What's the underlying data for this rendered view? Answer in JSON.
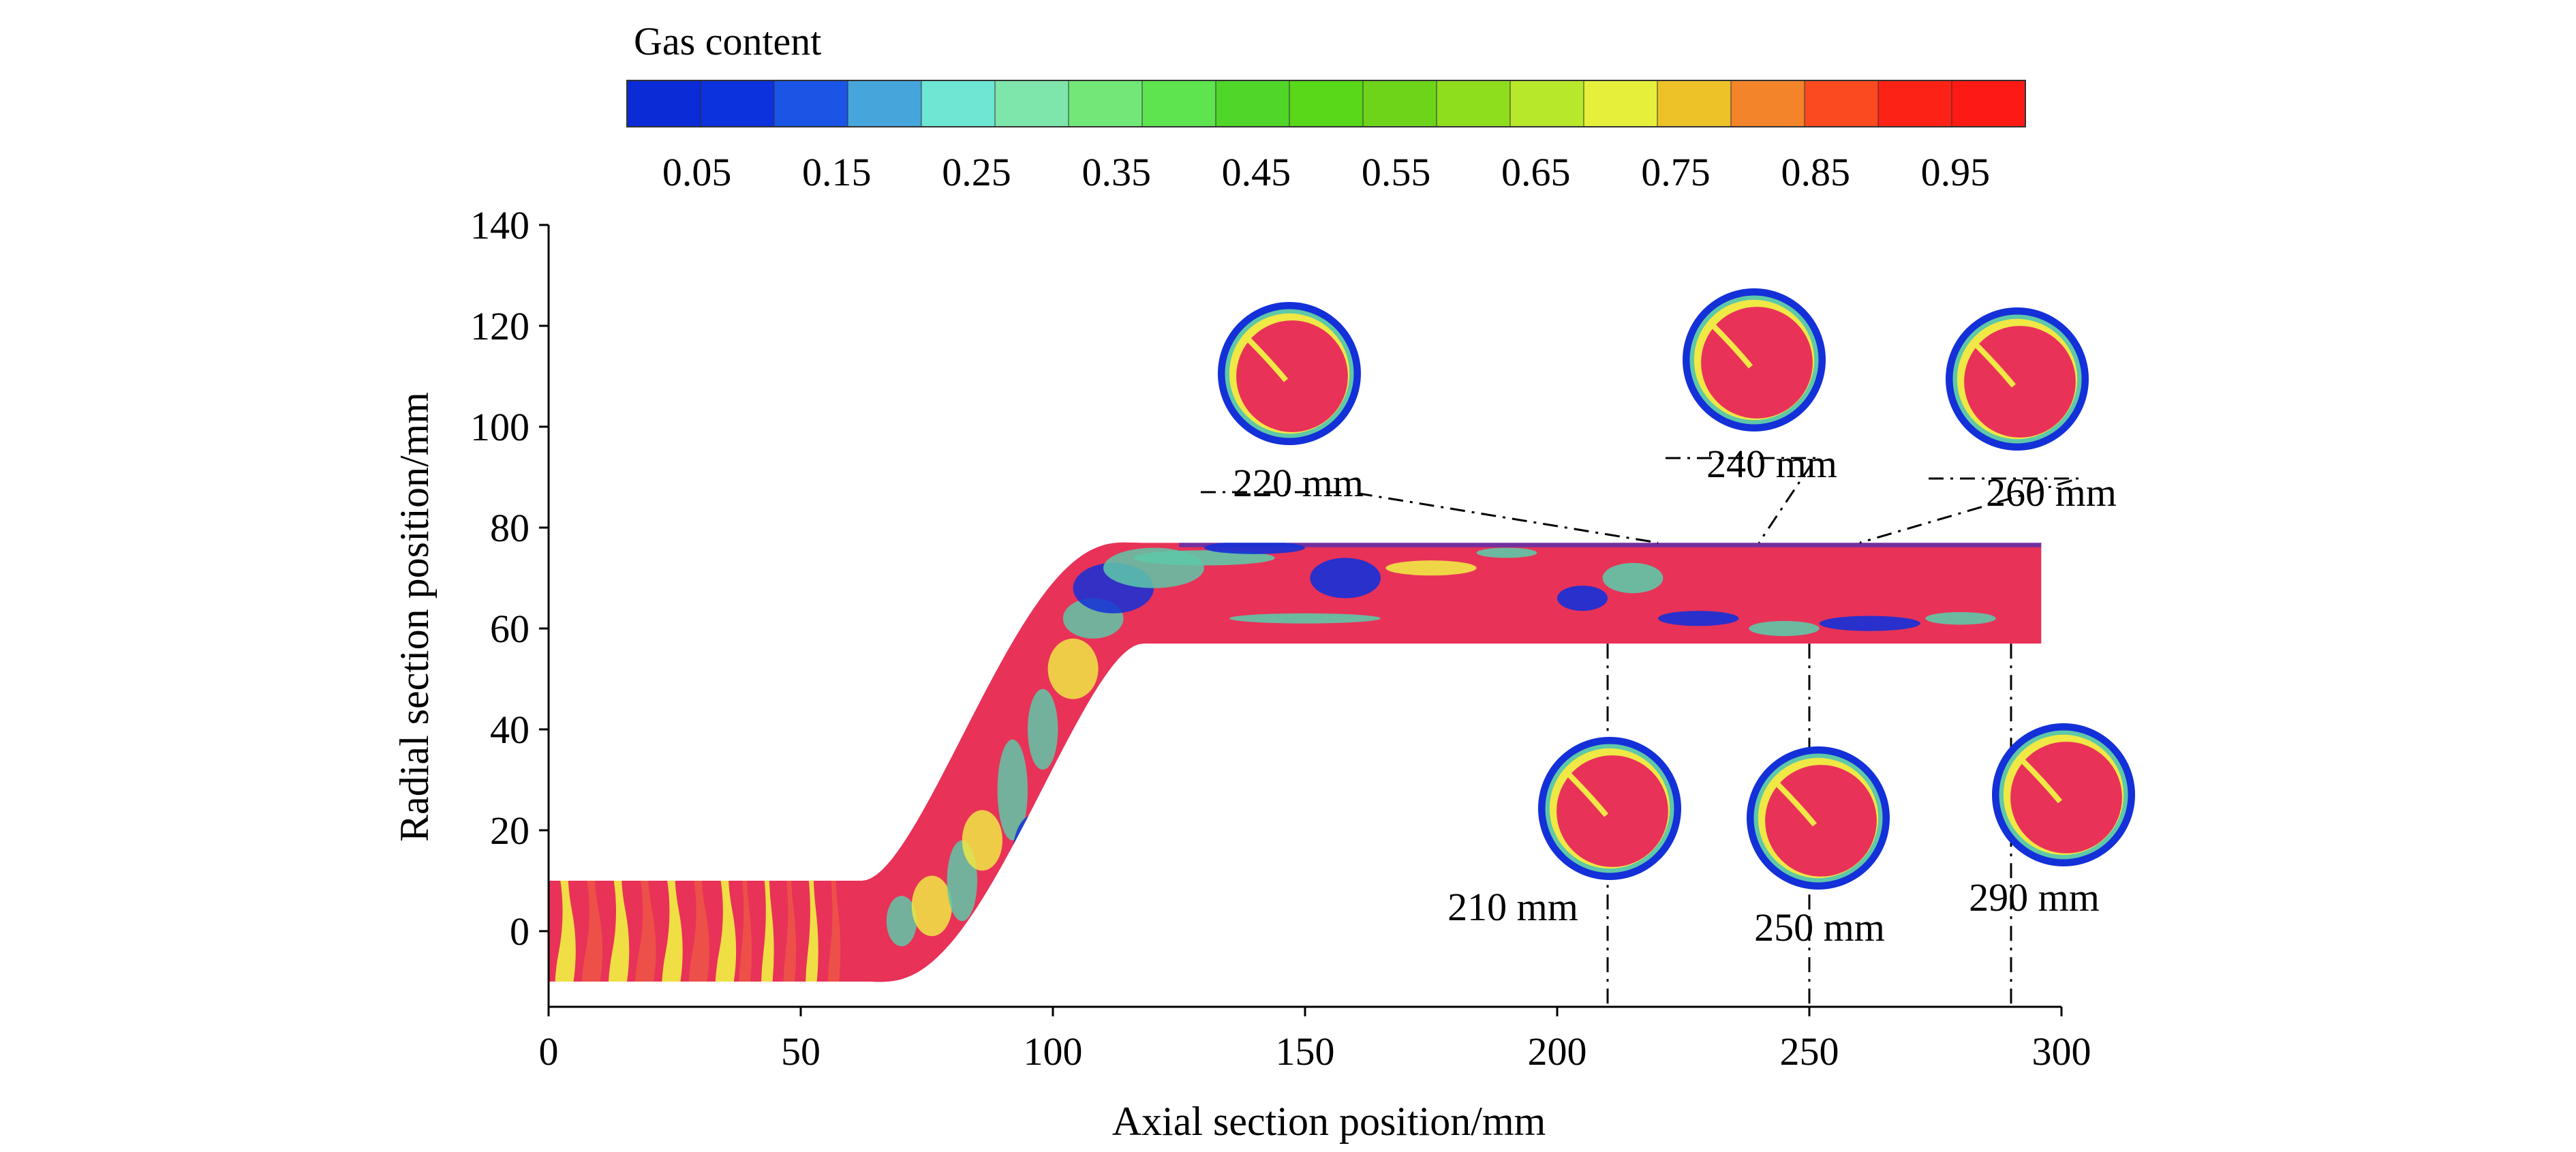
{
  "chart_data": {
    "type": "heatmap",
    "title": "",
    "xlabel": "Axial section position/mm",
    "ylabel": "Radial section position/mm",
    "xlim": [
      0,
      300
    ],
    "ylim": [
      -15,
      140
    ],
    "x_ticks": [
      0,
      50,
      100,
      150,
      200,
      250,
      300
    ],
    "y_ticks": [
      0,
      20,
      40,
      60,
      80,
      100,
      120,
      140
    ],
    "colorbar": {
      "label": "Gas content",
      "range": [
        0,
        1
      ],
      "tick_labels": [
        "0.05",
        "0.15",
        "0.25",
        "0.35",
        "0.45",
        "0.55",
        "0.65",
        "0.75",
        "0.85",
        "0.95"
      ],
      "colors": [
        "#0a2bd6",
        "#0b32dc",
        "#1a55e6",
        "#46a6dc",
        "#6ee6d4",
        "#7ee6aa",
        "#72e878",
        "#5ee44e",
        "#4fd628",
        "#58d818",
        "#6ed41a",
        "#8ede1e",
        "#b8e82a",
        "#e6f03a",
        "#ecc228",
        "#f4842a",
        "#fb4a20",
        "#fd2216",
        "#fe1a14"
      ]
    },
    "pipe": {
      "inner_diameter": 20,
      "inlet_centerline_y": 0,
      "outlet_centerline_y": 67,
      "bend_start_x": 62,
      "bend_end_x": 118
    },
    "cross_sections": [
      {
        "label": "210 mm",
        "x": 210,
        "placement": "below"
      },
      {
        "label": "220 mm",
        "x": 220,
        "placement": "above"
      },
      {
        "label": "240 mm",
        "x": 240,
        "placement": "above"
      },
      {
        "label": "250 mm",
        "x": 250,
        "placement": "below"
      },
      {
        "label": "260 mm",
        "x": 260,
        "placement": "above"
      },
      {
        "label": "290 mm",
        "x": 290,
        "placement": "below"
      }
    ],
    "colors": {
      "liquid": "#e83258",
      "gas": "#1430d8",
      "interface": "#f0e845",
      "transition": "#5ec8a8"
    }
  }
}
